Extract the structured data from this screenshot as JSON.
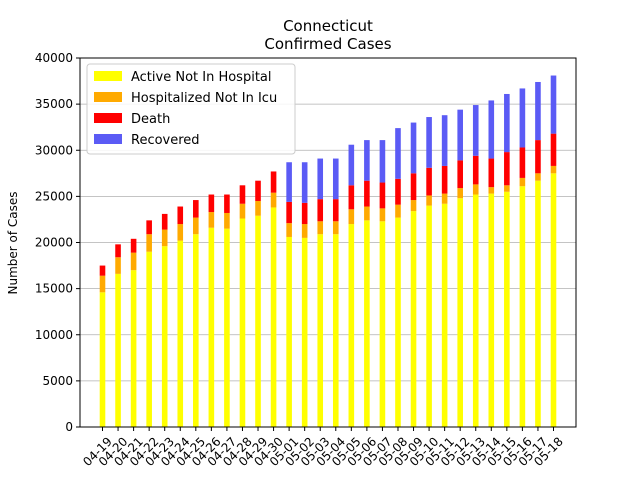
{
  "chart_data": {
    "type": "bar",
    "stacked": true,
    "title": "Connecticut",
    "subtitle": "Confirmed Cases",
    "xlabel": "",
    "ylabel": "Number of Cases",
    "ylim": [
      0,
      40000
    ],
    "yticks": [
      0,
      5000,
      10000,
      15000,
      20000,
      25000,
      30000,
      35000,
      40000
    ],
    "grid": "horizontal",
    "legend_position": "top-left",
    "categories": [
      "04-19",
      "04-20",
      "04-21",
      "04-22",
      "04-23",
      "04-24",
      "04-25",
      "04-26",
      "04-27",
      "04-28",
      "04-29",
      "04-30",
      "05-01",
      "05-02",
      "05-03",
      "05-04",
      "05-05",
      "05-06",
      "05-07",
      "05-08",
      "05-09",
      "05-10",
      "05-11",
      "05-12",
      "05-13",
      "05-14",
      "05-15",
      "05-16",
      "05-17",
      "05-18"
    ],
    "series": [
      {
        "name": "Active Not In Hospital",
        "color": "#ffff00",
        "values": [
          14600,
          16600,
          17000,
          19000,
          19600,
          20200,
          20900,
          21600,
          21500,
          22600,
          22900,
          23800,
          20600,
          20500,
          20900,
          20900,
          22000,
          22400,
          22300,
          22700,
          23400,
          24000,
          24200,
          24800,
          25200,
          25300,
          25500,
          26100,
          26700,
          27500
        ]
      },
      {
        "name": "Hospitalized Not In Icu",
        "color": "#ffaa00",
        "values": [
          1800,
          1800,
          1900,
          1900,
          1800,
          1800,
          1800,
          1700,
          1700,
          1600,
          1600,
          1600,
          1500,
          1500,
          1400,
          1400,
          1600,
          1500,
          1400,
          1400,
          1200,
          1100,
          1100,
          1100,
          1100,
          700,
          700,
          900,
          800,
          800
        ]
      },
      {
        "name": "Death",
        "color": "#ff0000",
        "values": [
          1100,
          1400,
          1500,
          1500,
          1700,
          1900,
          1900,
          1900,
          2000,
          2000,
          2200,
          2300,
          2300,
          2300,
          2400,
          2400,
          2600,
          2800,
          2800,
          2800,
          2900,
          3000,
          3000,
          3000,
          3100,
          3100,
          3600,
          3300,
          3600,
          3500
        ]
      },
      {
        "name": "Recovered",
        "color": "#5b5bf5",
        "values": [
          0,
          0,
          0,
          0,
          0,
          0,
          0,
          0,
          0,
          0,
          0,
          0,
          4300,
          4400,
          4400,
          4400,
          4400,
          4400,
          4600,
          5500,
          5500,
          5500,
          5500,
          5500,
          5500,
          6300,
          6300,
          6400,
          6300,
          6300
        ]
      }
    ]
  }
}
